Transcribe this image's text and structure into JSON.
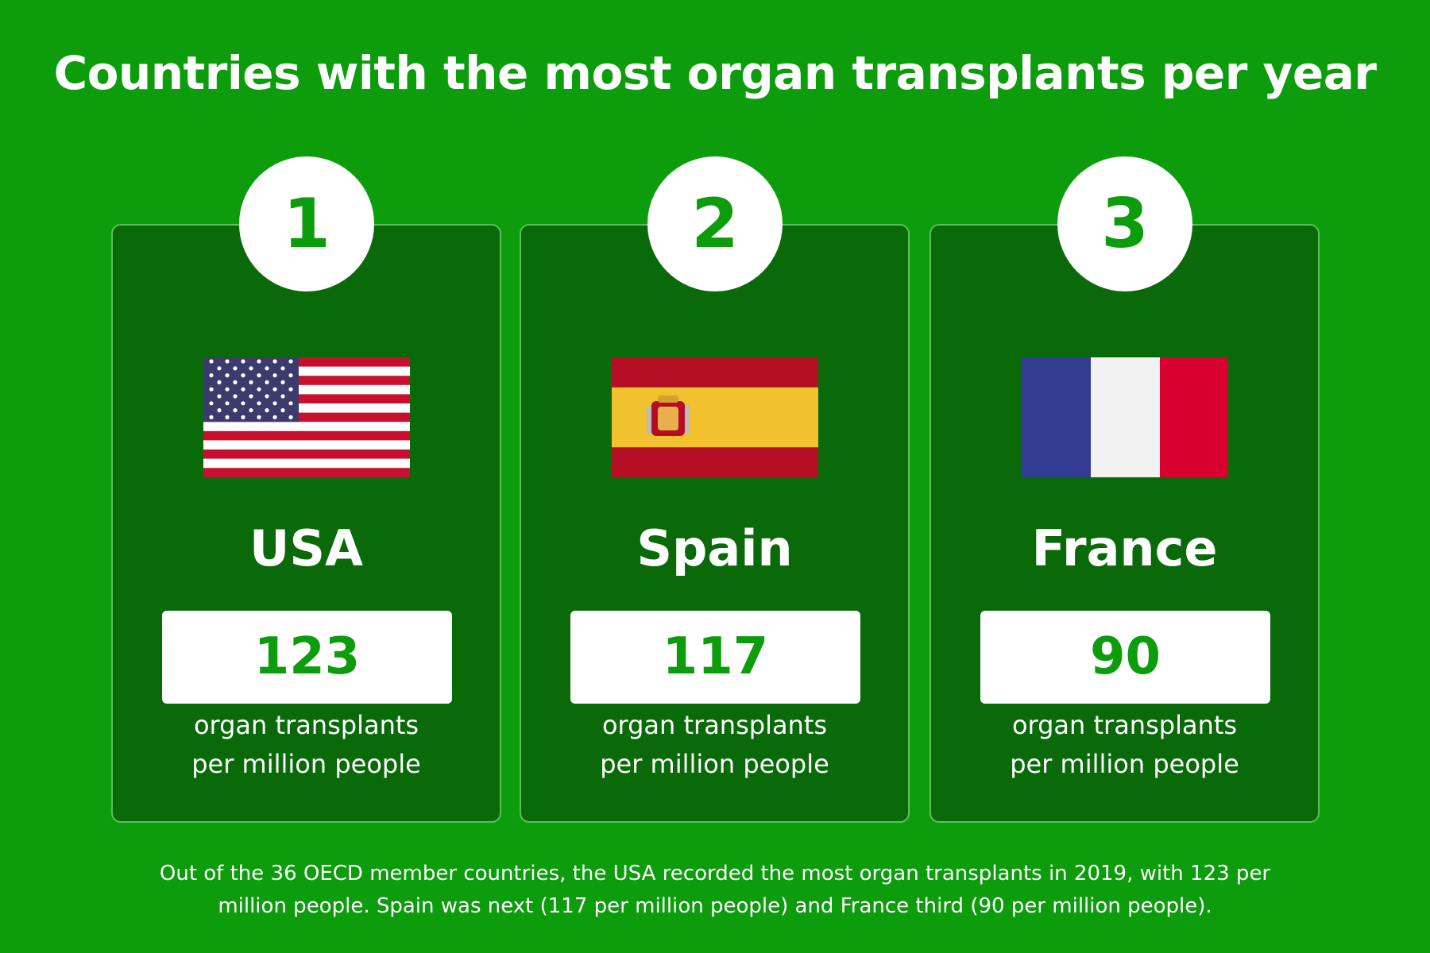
{
  "header": {
    "title": "Countries with the most organ transplants per year"
  },
  "cards": [
    {
      "rank": 1,
      "country": "USA",
      "value": 123,
      "caption": [
        "organ transplants",
        "per million people"
      ]
    },
    {
      "rank": 2,
      "country": "Spain",
      "value": 117,
      "caption": [
        "organ transplants",
        "per million people"
      ]
    },
    {
      "rank": 3,
      "country": "France",
      "value": 90,
      "caption": [
        "organ transplants",
        "per million people"
      ]
    }
  ],
  "footer": {
    "text": "Out of the 36 OECD member countries, the USA recorded the most organ transplants in 2019, with 123 per million people. Spain was next (117 per million people) and France third (90 per million people)."
  }
}
